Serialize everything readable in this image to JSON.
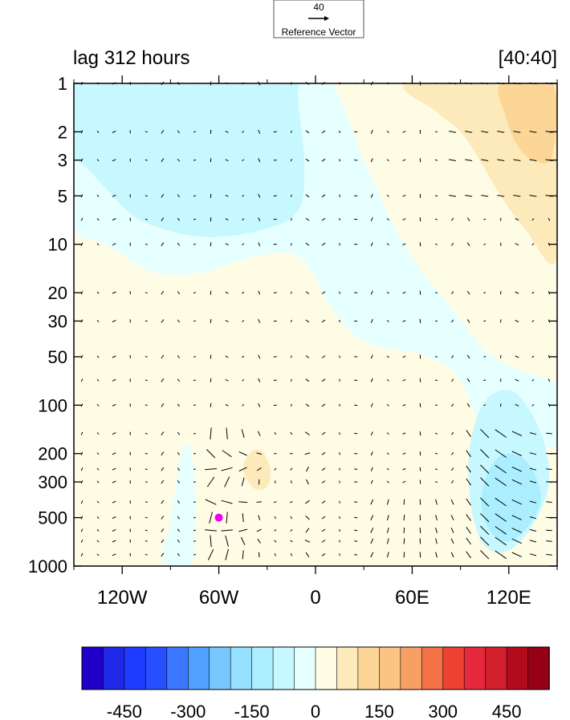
{
  "chart_data": {
    "type": "contour",
    "title_left": "lag 312 hours",
    "title_right": "[40:40]",
    "xlabel": "",
    "ylabel": "",
    "x_ticks": [
      {
        "value": -120,
        "label": "120W"
      },
      {
        "value": -60,
        "label": "60W"
      },
      {
        "value": 0,
        "label": "0"
      },
      {
        "value": 60,
        "label": "60E"
      },
      {
        "value": 120,
        "label": "120E"
      }
    ],
    "xlim": [
      -150,
      150
    ],
    "y_ticks": [
      {
        "value": 1,
        "label": "1"
      },
      {
        "value": 2,
        "label": "2"
      },
      {
        "value": 3,
        "label": "3"
      },
      {
        "value": 5,
        "label": "5"
      },
      {
        "value": 10,
        "label": "10"
      },
      {
        "value": 20,
        "label": "20"
      },
      {
        "value": 30,
        "label": "30"
      },
      {
        "value": 50,
        "label": "50"
      },
      {
        "value": 100,
        "label": "100"
      },
      {
        "value": 200,
        "label": "200"
      },
      {
        "value": 300,
        "label": "300"
      },
      {
        "value": 500,
        "label": "500"
      },
      {
        "value": 1000,
        "label": "1000"
      }
    ],
    "ylim": [
      1000,
      1
    ],
    "y_scale": "log",
    "reference_vector": {
      "value": "40",
      "label": "Reference Vector"
    },
    "marker": {
      "lon": -60,
      "p": 500,
      "color": "#ee00ee"
    },
    "colorbar": {
      "colors": [
        "#2000c8",
        "#1e28e6",
        "#1e3cff",
        "#2850ff",
        "#3c78ff",
        "#50a0ff",
        "#78c8ff",
        "#96e1ff",
        "#aaeeff",
        "#c8f8ff",
        "#e6ffff",
        "#fffce6",
        "#fdeaba",
        "#fcd696",
        "#fbc482",
        "#f8a064",
        "#f47246",
        "#ef4034",
        "#e6283c",
        "#d2202d",
        "#b40a1e",
        "#960014"
      ],
      "tick_labels": [
        "-450",
        "-300",
        "-150",
        "0",
        "150",
        "300",
        "450"
      ],
      "tick_values": [
        -450,
        -300,
        -150,
        0,
        150,
        300,
        450
      ]
    },
    "regions": [
      {
        "name": "upper-west-negative",
        "level": -90,
        "points": [
          [
            -150,
            1
          ],
          [
            -10,
            1
          ],
          [
            -7,
            3
          ],
          [
            -10,
            6
          ],
          [
            -30,
            8
          ],
          [
            -70,
            9
          ],
          [
            -110,
            7
          ],
          [
            -140,
            4
          ],
          [
            -150,
            3
          ]
        ]
      },
      {
        "name": "upper-west-negative-light",
        "level": -45,
        "points": [
          [
            -150,
            3
          ],
          [
            -110,
            7
          ],
          [
            -70,
            9
          ],
          [
            -30,
            8
          ],
          [
            -10,
            6
          ],
          [
            -7,
            3
          ],
          [
            -10,
            1
          ],
          [
            10,
            1
          ],
          [
            30,
            3
          ],
          [
            55,
            10
          ],
          [
            80,
            22
          ],
          [
            110,
            50
          ],
          [
            145,
            70
          ],
          [
            150,
            80
          ],
          [
            150,
            180
          ],
          [
            130,
            160
          ],
          [
            110,
            160
          ],
          [
            100,
            120
          ],
          [
            90,
            70
          ],
          [
            70,
            50
          ],
          [
            30,
            40
          ],
          [
            10,
            25
          ],
          [
            -10,
            12
          ],
          [
            -40,
            12
          ],
          [
            -70,
            15
          ],
          [
            -100,
            15
          ],
          [
            -130,
            10
          ],
          [
            -150,
            8
          ]
        ]
      },
      {
        "name": "lower-east-negative",
        "level": -90,
        "points": [
          [
            95,
            220
          ],
          [
            100,
            120
          ],
          [
            110,
            85
          ],
          [
            125,
            85
          ],
          [
            140,
            150
          ],
          [
            145,
            300
          ],
          [
            135,
            550
          ],
          [
            120,
            800
          ],
          [
            105,
            750
          ],
          [
            97,
            450
          ]
        ]
      },
      {
        "name": "lower-east-negative-dark",
        "level": -140,
        "points": [
          [
            103,
            400
          ],
          [
            108,
            250
          ],
          [
            118,
            200
          ],
          [
            132,
            230
          ],
          [
            140,
            380
          ],
          [
            130,
            600
          ],
          [
            118,
            700
          ],
          [
            108,
            600
          ]
        ]
      },
      {
        "name": "upper-east-positive",
        "level": 40,
        "points": [
          [
            38,
            1
          ],
          [
            150,
            1
          ],
          [
            150,
            45
          ],
          [
            130,
            30
          ],
          [
            110,
            18
          ],
          [
            95,
            9
          ],
          [
            80,
            5
          ],
          [
            65,
            3
          ],
          [
            50,
            2
          ]
        ]
      },
      {
        "name": "upper-east-positive-2",
        "level": 90,
        "points": [
          [
            58,
            1
          ],
          [
            150,
            1
          ],
          [
            150,
            12
          ],
          [
            130,
            8
          ],
          [
            115,
            5
          ],
          [
            102,
            3
          ],
          [
            90,
            2
          ],
          [
            75,
            1.5
          ]
        ]
      },
      {
        "name": "upper-east-positive-3",
        "level": 140,
        "points": [
          [
            115,
            1
          ],
          [
            147,
            1
          ],
          [
            147,
            2.8
          ],
          [
            135,
            3
          ],
          [
            125,
            2.4
          ],
          [
            118,
            1.6
          ]
        ]
      },
      {
        "name": "lower-mid-positive",
        "level": 40,
        "points": [
          [
            -65,
            200
          ],
          [
            -62,
            120
          ],
          [
            -50,
            88
          ],
          [
            -35,
            95
          ],
          [
            -25,
            140
          ],
          [
            -18,
            220
          ],
          [
            -8,
            350
          ],
          [
            -8,
            500
          ],
          [
            -25,
            620
          ],
          [
            -45,
            560
          ],
          [
            -62,
            330
          ]
        ]
      },
      {
        "name": "lower-mid-positive-2",
        "level": 90,
        "points": [
          [
            -45,
            250
          ],
          [
            -40,
            195
          ],
          [
            -33,
            195
          ],
          [
            -28,
            250
          ],
          [
            -30,
            320
          ],
          [
            -38,
            330
          ]
        ]
      },
      {
        "name": "west-edge-positive",
        "level": 40,
        "points": [
          [
            -150,
            12
          ],
          [
            -140,
            15
          ],
          [
            -138,
            30
          ],
          [
            -143,
            45
          ],
          [
            -150,
            60
          ]
        ]
      },
      {
        "name": "south-negative-patch",
        "level": -45,
        "points": [
          [
            -95,
            1000
          ],
          [
            -90,
            500
          ],
          [
            -83,
            200
          ],
          [
            -78,
            180
          ],
          [
            -75,
            300
          ],
          [
            -75,
            600
          ],
          [
            -78,
            1000
          ]
        ]
      }
    ]
  }
}
